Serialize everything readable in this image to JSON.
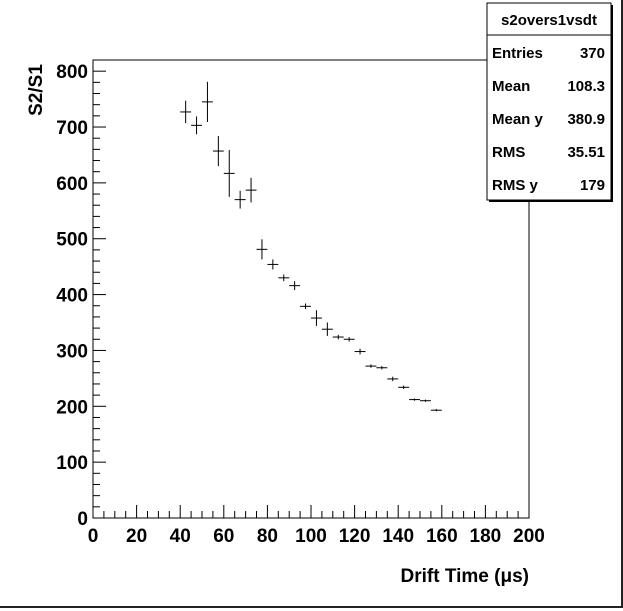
{
  "chart_data": {
    "type": "scatter",
    "xlabel": "Drift Time (μs)",
    "ylabel": "S2/S1",
    "xlim": [
      0,
      200
    ],
    "ylim": [
      0,
      820
    ],
    "x_ticks": [
      0,
      20,
      40,
      60,
      80,
      100,
      120,
      140,
      160,
      180,
      200
    ],
    "y_ticks": [
      0,
      100,
      200,
      300,
      400,
      500,
      600,
      700,
      800
    ],
    "grid": false,
    "error_bars": true,
    "stats_box": {
      "title": "s2overs1vsdt",
      "position": "top-right",
      "rows": [
        {
          "label": "Entries",
          "value": "370"
        },
        {
          "label": "Mean",
          "value": "108.3"
        },
        {
          "label": "Mean y",
          "value": "380.9"
        },
        {
          "label": "RMS",
          "value": "35.51"
        },
        {
          "label": "RMS y",
          "value": "179"
        }
      ]
    },
    "points": [
      {
        "x": 42.5,
        "y": 727,
        "xerr": 2.5,
        "yerr": 20
      },
      {
        "x": 47.5,
        "y": 703,
        "xerr": 2.5,
        "yerr": 16
      },
      {
        "x": 52.5,
        "y": 745,
        "xerr": 2.5,
        "yerr": 36
      },
      {
        "x": 57.5,
        "y": 657,
        "xerr": 2.5,
        "yerr": 27
      },
      {
        "x": 62.5,
        "y": 617,
        "xerr": 2.5,
        "yerr": 42
      },
      {
        "x": 67.5,
        "y": 570,
        "xerr": 2.5,
        "yerr": 16
      },
      {
        "x": 72.5,
        "y": 587,
        "xerr": 2.5,
        "yerr": 22
      },
      {
        "x": 77.5,
        "y": 481,
        "xerr": 2.5,
        "yerr": 18
      },
      {
        "x": 82.5,
        "y": 454,
        "xerr": 2.5,
        "yerr": 9
      },
      {
        "x": 87.5,
        "y": 430,
        "xerr": 2.5,
        "yerr": 6
      },
      {
        "x": 92.5,
        "y": 416,
        "xerr": 2.5,
        "yerr": 8
      },
      {
        "x": 97.5,
        "y": 379,
        "xerr": 2.5,
        "yerr": 5
      },
      {
        "x": 102.5,
        "y": 358,
        "xerr": 2.5,
        "yerr": 14
      },
      {
        "x": 107.5,
        "y": 338,
        "xerr": 2.5,
        "yerr": 12
      },
      {
        "x": 112.5,
        "y": 324,
        "xerr": 2.5,
        "yerr": 4
      },
      {
        "x": 117.5,
        "y": 320,
        "xerr": 2.5,
        "yerr": 4
      },
      {
        "x": 122.5,
        "y": 298,
        "xerr": 2.5,
        "yerr": 5
      },
      {
        "x": 127.5,
        "y": 272,
        "xerr": 2.5,
        "yerr": 3
      },
      {
        "x": 132.5,
        "y": 269,
        "xerr": 2.5,
        "yerr": 3
      },
      {
        "x": 137.5,
        "y": 249,
        "xerr": 2.5,
        "yerr": 4
      },
      {
        "x": 142.5,
        "y": 234,
        "xerr": 2.5,
        "yerr": 3
      },
      {
        "x": 147.5,
        "y": 212,
        "xerr": 2.5,
        "yerr": 2
      },
      {
        "x": 152.5,
        "y": 210,
        "xerr": 2.5,
        "yerr": 2
      },
      {
        "x": 157.5,
        "y": 193,
        "xerr": 2.5,
        "yerr": 2
      }
    ]
  }
}
